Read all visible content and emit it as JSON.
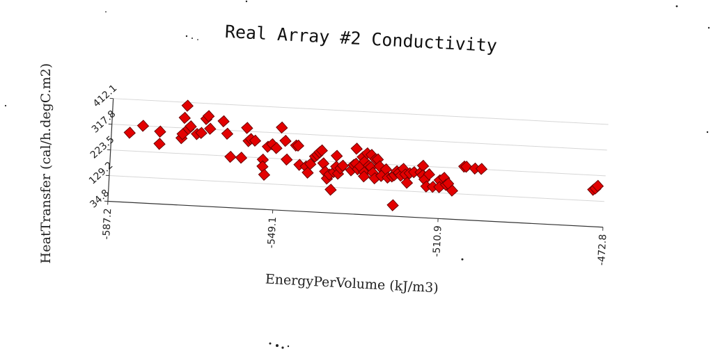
{
  "chart_data": {
    "type": "scatter",
    "title": "Real Array #2 Conductivity",
    "xlabel": "EnergyPerVolume (kJ/m3)",
    "ylabel": "HeatTransfer (cal/h.degC.m2)",
    "xlim": [
      -587.2,
      -472.8
    ],
    "ylim": [
      34.8,
      412.1
    ],
    "x_ticks": [
      "-587.2",
      "-549.1",
      "-510.9",
      "-472.8"
    ],
    "y_ticks": [
      "34.8",
      "129.2",
      "223.5",
      "317.8",
      "412.1"
    ],
    "grid": "horizontal",
    "color": "#e30000",
    "marker": "diamond",
    "points": [
      [
        -583.0,
        290
      ],
      [
        -580.0,
        318
      ],
      [
        -576.0,
        300
      ],
      [
        -576.0,
        255
      ],
      [
        -571.0,
        280
      ],
      [
        -570.8,
        295
      ],
      [
        -570.5,
        355
      ],
      [
        -569.5,
        315
      ],
      [
        -569.0,
        325
      ],
      [
        -570.0,
        400
      ],
      [
        -567.5,
        298
      ],
      [
        -566.5,
        303
      ],
      [
        -565.5,
        355
      ],
      [
        -565.0,
        366
      ],
      [
        -564.5,
        320
      ],
      [
        -561.5,
        350
      ],
      [
        -560.5,
        305
      ],
      [
        -559.5,
        221
      ],
      [
        -557.0,
        220
      ],
      [
        -556.0,
        330
      ],
      [
        -555.5,
        282
      ],
      [
        -555.0,
        290
      ],
      [
        -554.0,
        285
      ],
      [
        -552.0,
        217
      ],
      [
        -552.0,
        192
      ],
      [
        -551.5,
        162
      ],
      [
        -551.0,
        265
      ],
      [
        -550.0,
        275
      ],
      [
        -549.0,
        262
      ],
      [
        -548.0,
        338
      ],
      [
        -547.0,
        290
      ],
      [
        -546.5,
        222
      ],
      [
        -544.5,
        275
      ],
      [
        -544.0,
        275
      ],
      [
        -543.5,
        205
      ],
      [
        -542.0,
        200
      ],
      [
        -541.5,
        178
      ],
      [
        -541.0,
        210
      ],
      [
        -540.0,
        238
      ],
      [
        -539.5,
        245
      ],
      [
        -539.0,
        255
      ],
      [
        -538.5,
        262
      ],
      [
        -538.0,
        215
      ],
      [
        -537.5,
        185
      ],
      [
        -537.0,
        160
      ],
      [
        -536.5,
        175
      ],
      [
        -536.0,
        120
      ],
      [
        -535.5,
        185
      ],
      [
        -535.0,
        205
      ],
      [
        -535.0,
        245
      ],
      [
        -534.5,
        180
      ],
      [
        -534.0,
        200
      ],
      [
        -533.5,
        210
      ],
      [
        -531.5,
        195
      ],
      [
        -531.0,
        215
      ],
      [
        -530.5,
        220
      ],
      [
        -530.5,
        275
      ],
      [
        -530.0,
        200
      ],
      [
        -529.5,
        210
      ],
      [
        -529.0,
        245
      ],
      [
        -528.5,
        230
      ],
      [
        -528.5,
        190
      ],
      [
        -528.5,
        175
      ],
      [
        -528.0,
        260
      ],
      [
        -527.5,
        215
      ],
      [
        -527.0,
        210
      ],
      [
        -527.0,
        255
      ],
      [
        -526.5,
        190
      ],
      [
        -526.0,
        240
      ],
      [
        -526.0,
        170
      ],
      [
        -525.5,
        240
      ],
      [
        -525.0,
        215
      ],
      [
        -524.5,
        180
      ],
      [
        -523.5,
        205
      ],
      [
        -523.0,
        175
      ],
      [
        -522.0,
        180
      ],
      [
        -521.5,
        185
      ],
      [
        -521.5,
        75
      ],
      [
        -521.0,
        200
      ],
      [
        -520.5,
        195
      ],
      [
        -520.0,
        185
      ],
      [
        -519.5,
        210
      ],
      [
        -519.0,
        190
      ],
      [
        -518.5,
        160
      ],
      [
        -518.0,
        195
      ],
      [
        -517.0,
        200
      ],
      [
        -515.5,
        200
      ],
      [
        -515.0,
        225
      ],
      [
        -515.0,
        190
      ],
      [
        -514.5,
        175
      ],
      [
        -514.0,
        150
      ],
      [
        -513.5,
        195
      ],
      [
        -512.5,
        150
      ],
      [
        -511.0,
        175
      ],
      [
        -511.0,
        150
      ],
      [
        -510.0,
        185
      ],
      [
        -509.5,
        160
      ],
      [
        -509.0,
        165
      ],
      [
        -508.0,
        140
      ],
      [
        -505.5,
        230
      ],
      [
        -505.0,
        230
      ],
      [
        -503.0,
        225
      ],
      [
        -501.5,
        225
      ],
      [
        -475.5,
        170
      ],
      [
        -475.0,
        175
      ],
      [
        -474.5,
        185
      ]
    ]
  }
}
